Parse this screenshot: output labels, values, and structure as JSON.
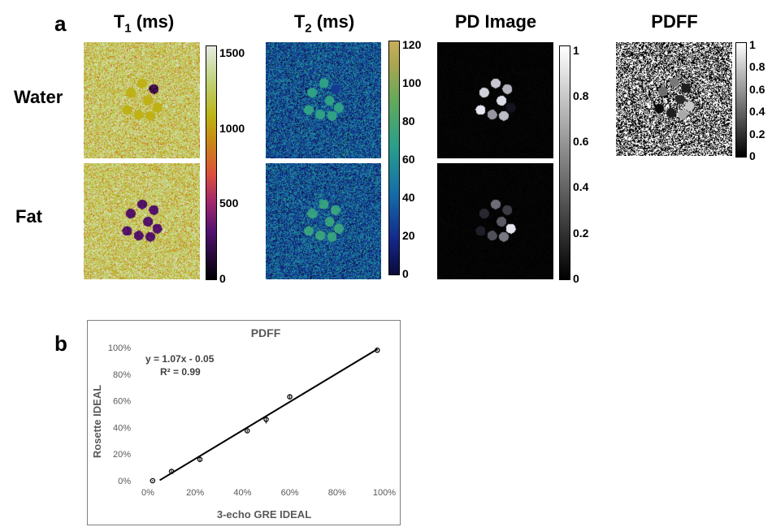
{
  "panels": {
    "a_label": "a",
    "b_label": "b"
  },
  "column_titles": {
    "t1_main": "T",
    "t1_sub": "1",
    "t1_unit": " (ms)",
    "t2_main": "T",
    "t2_sub": "2",
    "t2_unit": " (ms)",
    "pd": "PD Image",
    "pdff": "PDFF"
  },
  "row_labels": {
    "water": "Water",
    "fat": "Fat"
  },
  "colorbars": {
    "t1": {
      "ticks": [
        "1500",
        "1000",
        "500",
        "0"
      ],
      "values": [
        1500,
        1000,
        500,
        0
      ],
      "range": [
        0,
        1550
      ],
      "colormap": "inferno-like"
    },
    "t2": {
      "ticks": [
        "120",
        "100",
        "80",
        "60",
        "40",
        "20",
        "0"
      ],
      "values": [
        120,
        100,
        80,
        60,
        40,
        20,
        0
      ],
      "range": [
        0,
        122
      ],
      "colormap": "cividis-like"
    },
    "pd": {
      "ticks": [
        "1",
        "0.8",
        "0.6",
        "0.4",
        "0.2",
        "0"
      ],
      "values": [
        1,
        0.8,
        0.6,
        0.4,
        0.2,
        0
      ],
      "range": [
        0,
        1.02
      ],
      "colormap": "gray"
    },
    "pdff": {
      "ticks": [
        "1",
        "0.8",
        "0.6",
        "0.4",
        "0.2",
        "0"
      ],
      "values": [
        1,
        0.8,
        0.6,
        0.4,
        0.2,
        0
      ],
      "range": [
        0,
        1.02
      ],
      "colormap": "gray"
    }
  },
  "colors": {
    "fit_line": "#000000",
    "markers": "#000000",
    "axis_text": "#595959",
    "chart_border": "#7f7f7f"
  },
  "chart_data": {
    "type": "scatter",
    "title": "PDFF",
    "xlabel": "3-echo GRE IDEAL",
    "ylabel": "Rosette IDEAL",
    "xlim": [
      0,
      100
    ],
    "ylim": [
      0,
      100
    ],
    "x_ticks": [
      "0%",
      "20%",
      "40%",
      "60%",
      "80%",
      "100%"
    ],
    "y_ticks": [
      "0%",
      "20%",
      "40%",
      "60%",
      "80%",
      "100%"
    ],
    "grid": false,
    "legend": "none",
    "equation": "y = 1.07x - 0.05",
    "r_squared": "R² = 0.99",
    "points": [
      {
        "x": 2,
        "y": 0,
        "err": 0.5
      },
      {
        "x": 10,
        "y": 7,
        "err": 0.8
      },
      {
        "x": 22,
        "y": 16,
        "err": 2
      },
      {
        "x": 42,
        "y": 37.5,
        "err": 1
      },
      {
        "x": 50,
        "y": 46,
        "err": 3
      },
      {
        "x": 60,
        "y": 63,
        "err": 1
      },
      {
        "x": 97,
        "y": 98,
        "err": 0.5
      }
    ],
    "fit": {
      "slope": 1.07,
      "intercept": -0.05
    }
  }
}
